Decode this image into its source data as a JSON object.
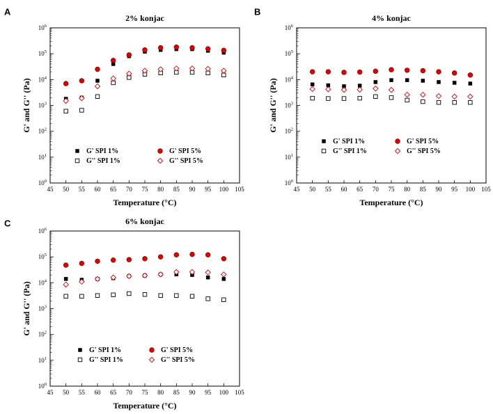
{
  "chart_data": [
    {
      "panel": "A",
      "type": "scatter",
      "title": "2% konjac",
      "xlabel": "Temperature (°C)",
      "ylabel": "G' and G'' (Pa)",
      "ylog": true,
      "xlim": [
        45,
        105
      ],
      "ylim": [
        1,
        1000000
      ],
      "xticks": [
        45,
        50,
        55,
        60,
        65,
        70,
        75,
        80,
        85,
        90,
        95,
        100,
        105
      ],
      "yticks": [
        {
          "base": "10",
          "exp": "0"
        },
        {
          "base": "10",
          "exp": "1"
        },
        {
          "base": "10",
          "exp": "2"
        },
        {
          "base": "10",
          "exp": "3"
        },
        {
          "base": "10",
          "exp": "4"
        },
        {
          "base": "10",
          "exp": "5"
        },
        {
          "base": "10",
          "exp": "6"
        }
      ],
      "x": [
        50,
        55,
        60,
        65,
        70,
        75,
        80,
        85,
        90,
        95,
        100
      ],
      "series": [
        {
          "name": "G' SPI 1%",
          "marker": "square-filled",
          "values": [
            1800,
            2000,
            9000,
            40000,
            80000,
            120000,
            140000,
            150000,
            150000,
            130000,
            110000
          ]
        },
        {
          "name": "G'' SPI 1%",
          "marker": "square-open",
          "values": [
            600,
            650,
            2200,
            7500,
            12000,
            16000,
            18000,
            19000,
            19000,
            18000,
            15000
          ]
        },
        {
          "name": "G' SPI 5%",
          "marker": "circle-filled",
          "values": [
            7000,
            9000,
            25000,
            55000,
            90000,
            140000,
            170000,
            180000,
            170000,
            155000,
            135000
          ]
        },
        {
          "name": "G'' SPI 5%",
          "marker": "diamond-open",
          "values": [
            1500,
            1900,
            5500,
            11000,
            17000,
            22000,
            25000,
            27000,
            27000,
            26000,
            22000
          ]
        }
      ]
    },
    {
      "panel": "B",
      "type": "scatter",
      "title": "4% konjac",
      "xlabel": "Temperature (°C)",
      "ylabel": "G' and G'' (Pa)",
      "ylog": true,
      "xlim": [
        45,
        105
      ],
      "ylim": [
        1,
        1000000
      ],
      "xticks": [
        45,
        50,
        55,
        60,
        65,
        70,
        75,
        80,
        85,
        90,
        95,
        100,
        105
      ],
      "yticks": [
        {
          "base": "10",
          "exp": "0"
        },
        {
          "base": "10",
          "exp": "1"
        },
        {
          "base": "10",
          "exp": "2"
        },
        {
          "base": "10",
          "exp": "3"
        },
        {
          "base": "10",
          "exp": "4"
        },
        {
          "base": "10",
          "exp": "5"
        },
        {
          "base": "10",
          "exp": "6"
        }
      ],
      "x": [
        50,
        55,
        60,
        65,
        70,
        75,
        80,
        85,
        90,
        95,
        100
      ],
      "series": [
        {
          "name": "G' SPI 1%",
          "marker": "square-filled",
          "values": [
            6500,
            6000,
            5500,
            5800,
            8000,
            9500,
            9500,
            9000,
            8000,
            7500,
            7000
          ]
        },
        {
          "name": "G'' SPI 1%",
          "marker": "square-open",
          "values": [
            1900,
            1850,
            1850,
            1900,
            2200,
            2000,
            1600,
            1400,
            1300,
            1300,
            1300
          ]
        },
        {
          "name": "G' SPI 5%",
          "marker": "circle-filled",
          "values": [
            20000,
            20000,
            19000,
            19500,
            21000,
            24000,
            23000,
            22000,
            20000,
            18000,
            15000
          ]
        },
        {
          "name": "G'' SPI 5%",
          "marker": "diamond-open",
          "values": [
            4300,
            4200,
            4000,
            4100,
            4500,
            4000,
            2600,
            2600,
            2300,
            2200,
            2200
          ]
        }
      ]
    },
    {
      "panel": "C",
      "type": "scatter",
      "title": "6% konjac",
      "xlabel": "Temperature (°C)",
      "ylabel": "G' and G'' (Pa)",
      "ylog": true,
      "xlim": [
        45,
        105
      ],
      "ylim": [
        1,
        1000000
      ],
      "xticks": [
        45,
        50,
        55,
        60,
        65,
        70,
        75,
        80,
        85,
        90,
        95,
        100,
        105
      ],
      "yticks": [
        {
          "base": "10",
          "exp": "0"
        },
        {
          "base": "10",
          "exp": "1"
        },
        {
          "base": "10",
          "exp": "2"
        },
        {
          "base": "10",
          "exp": "3"
        },
        {
          "base": "10",
          "exp": "4"
        },
        {
          "base": "10",
          "exp": "5"
        },
        {
          "base": "10",
          "exp": "6"
        }
      ],
      "x": [
        50,
        55,
        60,
        65,
        70,
        75,
        80,
        85,
        90,
        95,
        100
      ],
      "series": [
        {
          "name": "G' SPI 1%",
          "marker": "square-filled",
          "values": [
            14000,
            13000,
            14000,
            15000,
            18000,
            19000,
            21000,
            21000,
            20000,
            16000,
            14000
          ]
        },
        {
          "name": "G'' SPI 1%",
          "marker": "square-open",
          "values": [
            3000,
            3000,
            3200,
            3400,
            3800,
            3500,
            3200,
            3200,
            3000,
            2400,
            2200
          ]
        },
        {
          "name": "G' SPI 5%",
          "marker": "circle-filled",
          "values": [
            48000,
            56000,
            68000,
            75000,
            78000,
            85000,
            100000,
            120000,
            125000,
            120000,
            85000
          ]
        },
        {
          "name": "G'' SPI 5%",
          "marker": "diamond-open",
          "values": [
            8500,
            11000,
            14000,
            16000,
            18000,
            19000,
            21000,
            26000,
            26000,
            25000,
            21000
          ]
        }
      ]
    }
  ],
  "colors": {
    "black": "#000000",
    "red": "#e00000"
  }
}
